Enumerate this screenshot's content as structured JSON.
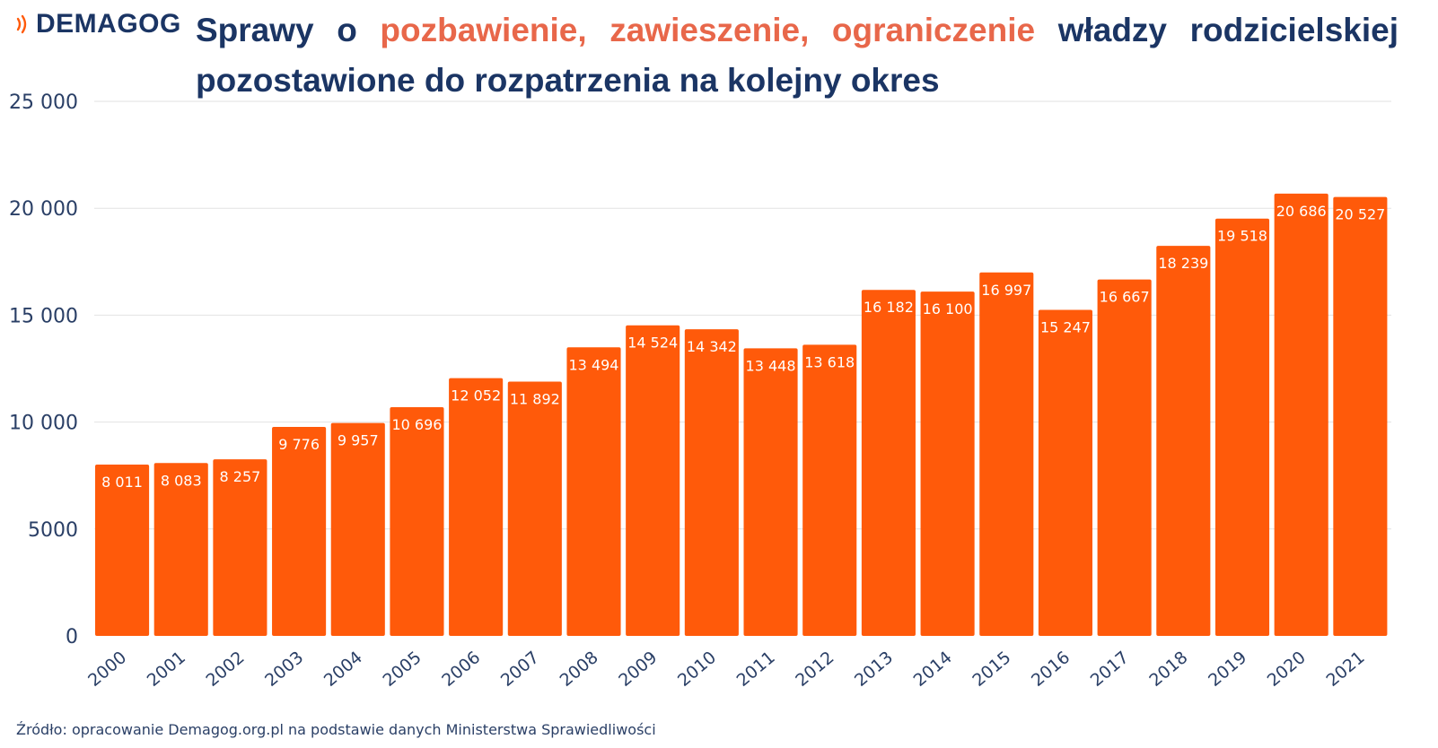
{
  "brand": {
    "name": "DEMAGOG",
    "icon": "signal-waves-icon",
    "icon_color": "#ff5a0a"
  },
  "title": {
    "part1": "Sprawy",
    "part2": "o",
    "highlight1": "pozbawienie,",
    "highlight2": "zawieszenie,",
    "highlight3": "ograniczenie",
    "part3": "władzy",
    "part4": "rodzicielskiej",
    "line2": "pozostawione do rozpatrzenia na kolejny okres"
  },
  "source": "Źródło: opracowanie Demagog.org.pl na podstawie danych Ministerstwa Sprawiedliwości",
  "colors": {
    "bar": "#ff5a0a",
    "title": "#1b3564",
    "highlight": "#e8674a",
    "axis_text": "#2a3f66",
    "grid": "#e2e2e2"
  },
  "chart_data": {
    "type": "bar",
    "categories": [
      "2000",
      "2001",
      "2002",
      "2003",
      "2004",
      "2005",
      "2006",
      "2007",
      "2008",
      "2009",
      "2010",
      "2011",
      "2012",
      "2013",
      "2014",
      "2015",
      "2016",
      "2017",
      "2018",
      "2019",
      "2020",
      "2021"
    ],
    "values": [
      8011,
      8083,
      8257,
      9776,
      9957,
      10696,
      12052,
      11892,
      13494,
      14524,
      14342,
      13448,
      13618,
      16182,
      16100,
      16997,
      15247,
      16667,
      18239,
      19518,
      20686,
      20527
    ],
    "data_labels": [
      "8 011",
      "8 083",
      "8 257",
      "9 776",
      "9 957",
      "10 696",
      "12 052",
      "11 892",
      "13 494",
      "14 524",
      "14 342",
      "13 448",
      "13 618",
      "16 182",
      "16 100",
      "16 997",
      "15 247",
      "16 667",
      "18 239",
      "19 518",
      "20 686",
      "20 527"
    ],
    "ylim": [
      0,
      25000
    ],
    "yticks": [
      0,
      5000,
      10000,
      15000,
      20000,
      25000
    ],
    "ytick_labels": [
      "0",
      "5000",
      "10 000",
      "15 000",
      "20 000",
      "25 000"
    ],
    "grid": true,
    "legend": "none"
  }
}
